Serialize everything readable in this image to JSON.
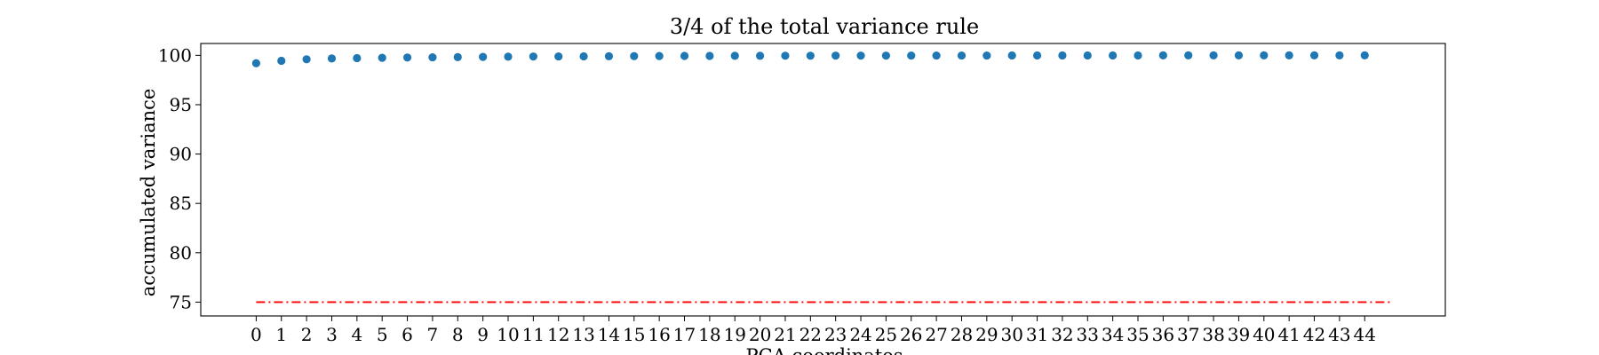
{
  "chart_data": {
    "type": "scatter",
    "title": "3/4 of the total variance rule",
    "xlabel": "PCA coordinates",
    "ylabel": "accumulated variance",
    "x": [
      0,
      1,
      2,
      3,
      4,
      5,
      6,
      7,
      8,
      9,
      10,
      11,
      12,
      13,
      14,
      15,
      16,
      17,
      18,
      19,
      20,
      21,
      22,
      23,
      24,
      25,
      26,
      27,
      28,
      29,
      30,
      31,
      32,
      33,
      34,
      35,
      36,
      37,
      38,
      39,
      40,
      41,
      42,
      43,
      44
    ],
    "xticks": [
      "0",
      "1",
      "2",
      "3",
      "4",
      "5",
      "6",
      "7",
      "8",
      "9",
      "10",
      "11",
      "12",
      "13",
      "14",
      "15",
      "16",
      "17",
      "18",
      "19",
      "20",
      "21",
      "22",
      "23",
      "24",
      "25",
      "26",
      "27",
      "28",
      "29",
      "30",
      "31",
      "32",
      "33",
      "34",
      "35",
      "36",
      "37",
      "38",
      "39",
      "40",
      "41",
      "42",
      "43",
      "44"
    ],
    "series": [
      {
        "values": [
          99.2,
          99.45,
          99.6,
          99.68,
          99.72,
          99.75,
          99.78,
          99.8,
          99.82,
          99.84,
          99.86,
          99.88,
          99.89,
          99.9,
          99.91,
          99.92,
          99.93,
          99.94,
          99.94,
          99.95,
          99.95,
          99.96,
          99.96,
          99.97,
          99.97,
          99.97,
          99.98,
          99.98,
          99.98,
          99.98,
          99.99,
          99.99,
          99.99,
          99.99,
          99.99,
          99.99,
          100,
          100,
          100,
          100,
          100,
          100,
          100,
          100,
          100
        ],
        "color": "#1f77b4"
      }
    ],
    "threshold": {
      "value": 75,
      "color": "#ff0000",
      "style": "dash-dot"
    },
    "xlim": [
      -2.2,
      47.2
    ],
    "ylim": [
      73.6,
      101.2
    ],
    "yticks": [
      75,
      80,
      85,
      90,
      95,
      100
    ],
    "ytick_labels": [
      "75",
      "80",
      "85",
      "90",
      "95",
      "100"
    ],
    "grid": false
  }
}
